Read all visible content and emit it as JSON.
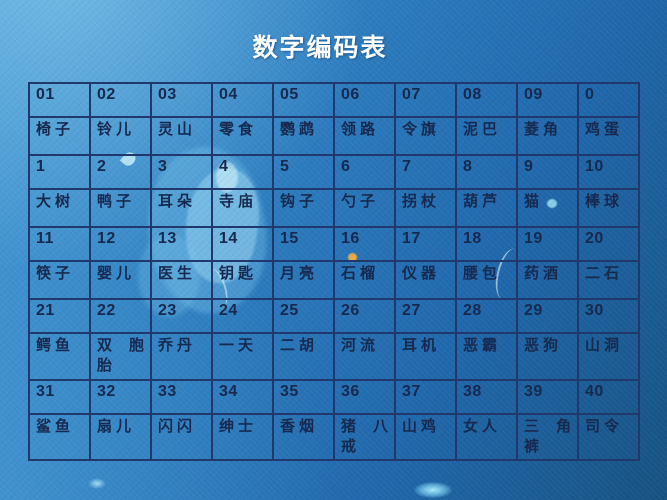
{
  "title": "数字编码表",
  "table": {
    "description": "数字记忆编码对照表，数字行与对应词语行交替",
    "rows": [
      {
        "type": "code",
        "cells": [
          "01",
          "02",
          "03",
          "04",
          "05",
          "06",
          "07",
          "08",
          "09",
          "0"
        ]
      },
      {
        "type": "word",
        "cells": [
          "椅子",
          "铃儿",
          "灵山",
          "零食",
          "鹦鹉",
          "领路",
          "令旗",
          "泥巴",
          "菱角",
          "鸡蛋"
        ]
      },
      {
        "type": "code",
        "cells": [
          "1",
          "2",
          "3",
          "4",
          "5",
          "6",
          "7",
          "8",
          "9",
          "10"
        ]
      },
      {
        "type": "word",
        "cells": [
          "大树",
          "鸭子",
          "耳朵",
          "寺庙",
          "钩子",
          "勺子",
          "拐杖",
          "葫芦",
          "猫",
          "棒球"
        ]
      },
      {
        "type": "code",
        "cells": [
          "11",
          "12",
          "13",
          "14",
          "15",
          "16",
          "17",
          "18",
          "19",
          "20"
        ]
      },
      {
        "type": "word",
        "cells": [
          "筷子",
          "婴儿",
          "医生",
          "钥匙",
          "月亮",
          "石榴",
          "仪器",
          "腰包",
          "药酒",
          "二石"
        ]
      },
      {
        "type": "code",
        "cells": [
          "21",
          "22",
          "23",
          "24",
          "25",
          "26",
          "27",
          "28",
          "29",
          "30"
        ]
      },
      {
        "type": "word",
        "cells": [
          "鳄鱼",
          "双胞胎",
          "乔丹",
          "一天",
          "二胡",
          "河流",
          "耳机",
          "恶霸",
          "恶狗",
          "山洞"
        ]
      },
      {
        "type": "code",
        "cells": [
          "31",
          "32",
          "33",
          "34",
          "35",
          "36",
          "37",
          "38",
          "39",
          "40"
        ]
      },
      {
        "type": "word",
        "cells": [
          "鲨鱼",
          "扇儿",
          "闪闪",
          "绅士",
          "香烟",
          "猪八戒",
          "山鸡",
          "女人",
          "三角裤",
          "司令"
        ]
      }
    ]
  },
  "colors": {
    "background_top": "#469ad4",
    "background_bottom": "#175281",
    "table_border": "#20386b",
    "cell_text": "#17294f",
    "title_text": "#ffffff",
    "decor_blob": "#82cdf0",
    "decor_orange_dot": "#efa843"
  }
}
